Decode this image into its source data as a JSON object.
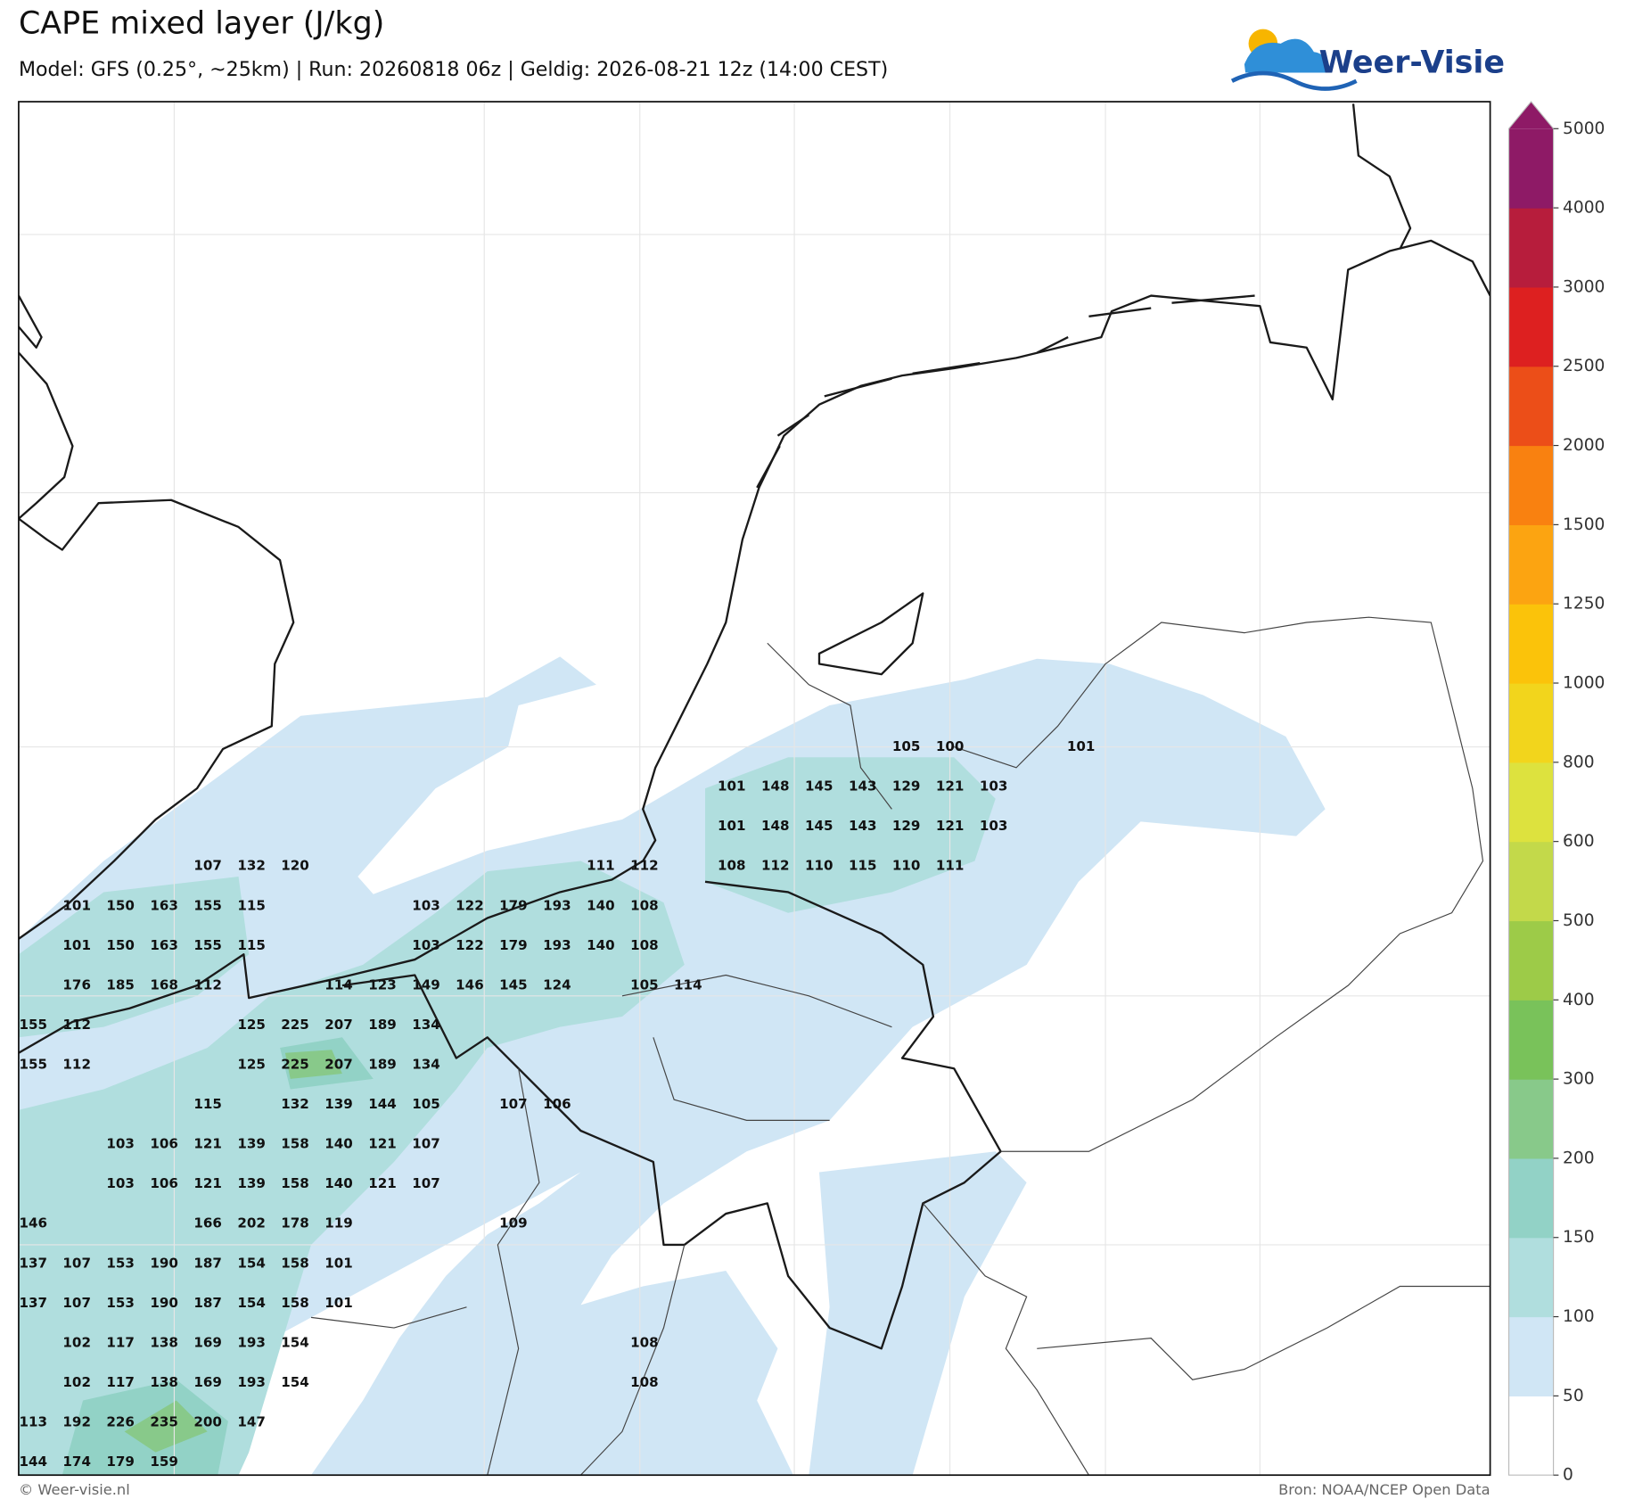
{
  "header": {
    "title": "CAPE mixed layer (J/kg)",
    "subtitle": "Model: GFS (0.25°, ~25km)  |  Run: 20260818 06z  |  Geldig: 2026-08-21 12z (14:00 CEST)",
    "logo": "Weer-Visie"
  },
  "map": {
    "labels": [
      [
        null,
        null,
        null,
        null,
        null,
        null,
        null,
        null,
        null,
        null,
        null,
        null,
        null,
        null,
        null,
        null,
        null,
        null,
        null,
        null,
        105,
        100,
        null,
        null,
        101
      ],
      [
        null,
        null,
        null,
        null,
        null,
        null,
        null,
        null,
        null,
        null,
        null,
        null,
        null,
        null,
        null,
        null,
        101,
        148,
        145,
        143,
        129,
        121,
        103
      ],
      [
        null,
        null,
        null,
        null,
        null,
        null,
        null,
        null,
        null,
        null,
        null,
        null,
        null,
        null,
        null,
        null,
        101,
        148,
        145,
        143,
        129,
        121,
        103
      ],
      [
        null,
        null,
        null,
        null,
        107,
        132,
        120,
        null,
        null,
        null,
        null,
        null,
        null,
        111,
        112,
        null,
        108,
        112,
        110,
        115,
        110,
        111
      ],
      [
        null,
        101,
        150,
        163,
        155,
        115,
        null,
        null,
        null,
        103,
        122,
        179,
        193,
        140,
        108
      ],
      [
        null,
        101,
        150,
        163,
        155,
        115,
        null,
        null,
        null,
        103,
        122,
        179,
        193,
        140,
        108
      ],
      [
        null,
        176,
        185,
        168,
        112,
        null,
        null,
        114,
        123,
        149,
        146,
        145,
        124,
        null,
        105,
        114
      ],
      [
        155,
        112,
        null,
        null,
        null,
        125,
        225,
        207,
        189,
        134
      ],
      [
        155,
        112,
        null,
        null,
        null,
        125,
        225,
        207,
        189,
        134
      ],
      [
        null,
        null,
        null,
        null,
        115,
        null,
        132,
        139,
        144,
        105,
        null,
        107,
        106
      ],
      [
        null,
        null,
        103,
        106,
        121,
        139,
        158,
        140,
        121,
        107
      ],
      [
        null,
        null,
        103,
        106,
        121,
        139,
        158,
        140,
        121,
        107
      ],
      [
        146,
        null,
        null,
        null,
        166,
        202,
        178,
        119,
        null,
        null,
        null,
        109
      ],
      [
        137,
        107,
        153,
        190,
        187,
        154,
        158,
        101
      ],
      [
        137,
        107,
        153,
        190,
        187,
        154,
        158,
        101
      ],
      [
        null,
        102,
        117,
        138,
        169,
        193,
        154,
        null,
        null,
        null,
        null,
        null,
        null,
        null,
        108
      ],
      [
        null,
        102,
        117,
        138,
        169,
        193,
        154,
        null,
        null,
        null,
        null,
        null,
        null,
        null,
        108
      ],
      [
        113,
        192,
        226,
        235,
        200,
        147
      ],
      [
        144,
        174,
        179,
        159
      ]
    ]
  },
  "colorbar": {
    "ticks": [
      0,
      50,
      100,
      150,
      200,
      300,
      400,
      500,
      600,
      800,
      1000,
      1250,
      1500,
      2000,
      2500,
      3000,
      4000,
      5000
    ],
    "colors": [
      "#ffffff",
      "#d0e6f5",
      "#b0dede",
      "#92d2c6",
      "#88c98a",
      "#79c25a",
      "#9dcb48",
      "#c3d94a",
      "#dde23e",
      "#f2d51c",
      "#fbc30a",
      "#fca411",
      "#f98110",
      "#ec4e18",
      "#dd2020",
      "#b71d3c",
      "#8e1a66"
    ]
  },
  "footer": {
    "left": "© Weer-visie.nl",
    "right": "Bron: NOAA/NCEP Open Data"
  }
}
